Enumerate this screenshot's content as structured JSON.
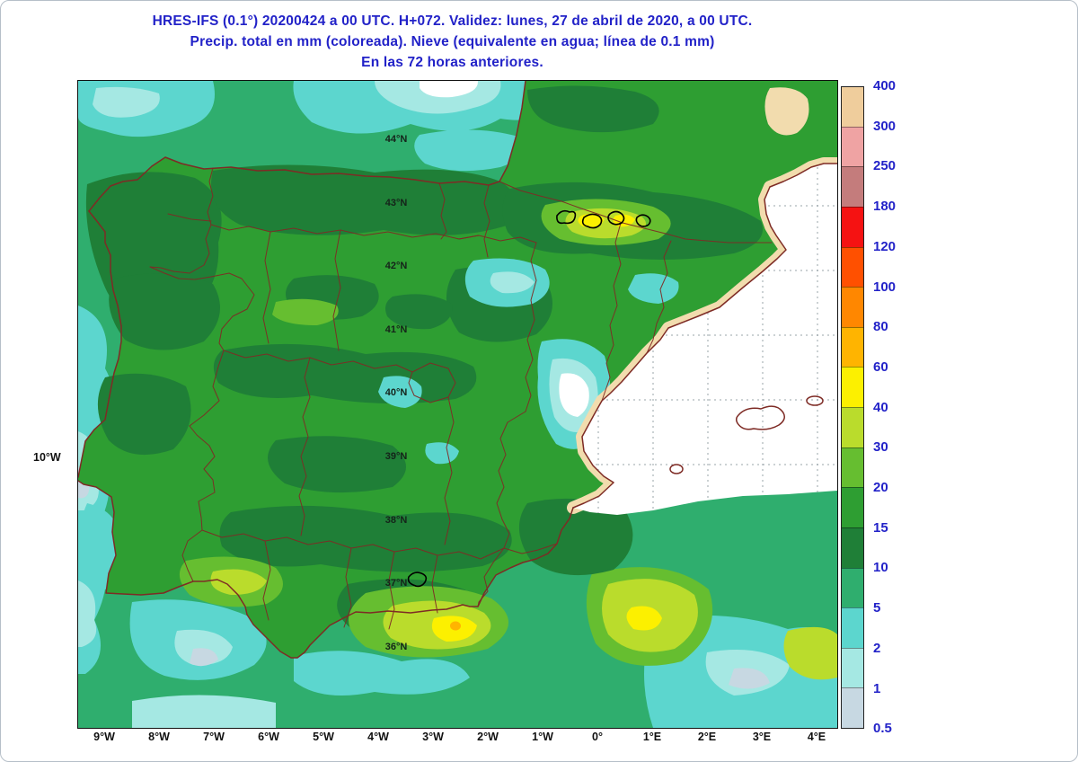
{
  "title": {
    "line1": "HRES-IFS (0.1°) 20200424 a 00 UTC.  H+072. Validez: lunes, 27 de abril de 2020,  a  00 UTC.",
    "line2": "Precip. total en mm (coloreada). Nieve (equivalente en agua; línea de 0.1 mm)",
    "line3": "En las 72 horas anteriores."
  },
  "theme": {
    "accent_blue": "#2222C8"
  },
  "colorbar": {
    "unit_labels": [
      "400",
      "300",
      "250",
      "180",
      "120",
      "100",
      "80",
      "60",
      "40",
      "30",
      "20",
      "15",
      "10",
      "5",
      "2",
      "1",
      "0.5"
    ],
    "colors": [
      "#EFCD9C",
      "#EFA3A3",
      "#C47C7C",
      "#F51212",
      "#FF5000",
      "#FF8700",
      "#FFB400",
      "#FCF000",
      "#BADC2C",
      "#66BE30",
      "#2E9E32",
      "#1F7F37",
      "#2FAE6E",
      "#5CD6CE",
      "#A5E8E3",
      "#C7D8E2"
    ]
  },
  "axes": {
    "lat_labels": [
      "44°N",
      "43°N",
      "42°N",
      "41°N",
      "40°N",
      "39°N",
      "38°N",
      "37°N",
      "36°N"
    ],
    "lon_labels": [
      "9°W",
      "8°W",
      "7°W",
      "6°W",
      "5°W",
      "4°W",
      "3°W",
      "2°W",
      "1°W",
      "0°",
      "1°E",
      "2°E",
      "3°E",
      "4°E"
    ],
    "left_label": "10°W"
  },
  "map": {
    "colors": {
      "ocean": "#2FAE6E",
      "land": "#2E9E32",
      "land_dark": "#1F7F37",
      "land_bright": "#66BE30",
      "yellow_green": "#BADC2C",
      "yellow": "#FCF000",
      "orange": "#FFB400",
      "cyan": "#5CD6CE",
      "pale_cyan": "#A5E8E3",
      "pale_blue": "#C7D8E2",
      "sea_dry": "#FFFFFF",
      "land_dry": "#F2DCAE",
      "border_line": "#7E2B25",
      "snow_line": "#000000",
      "grid_line": "#9AA4AA"
    }
  }
}
